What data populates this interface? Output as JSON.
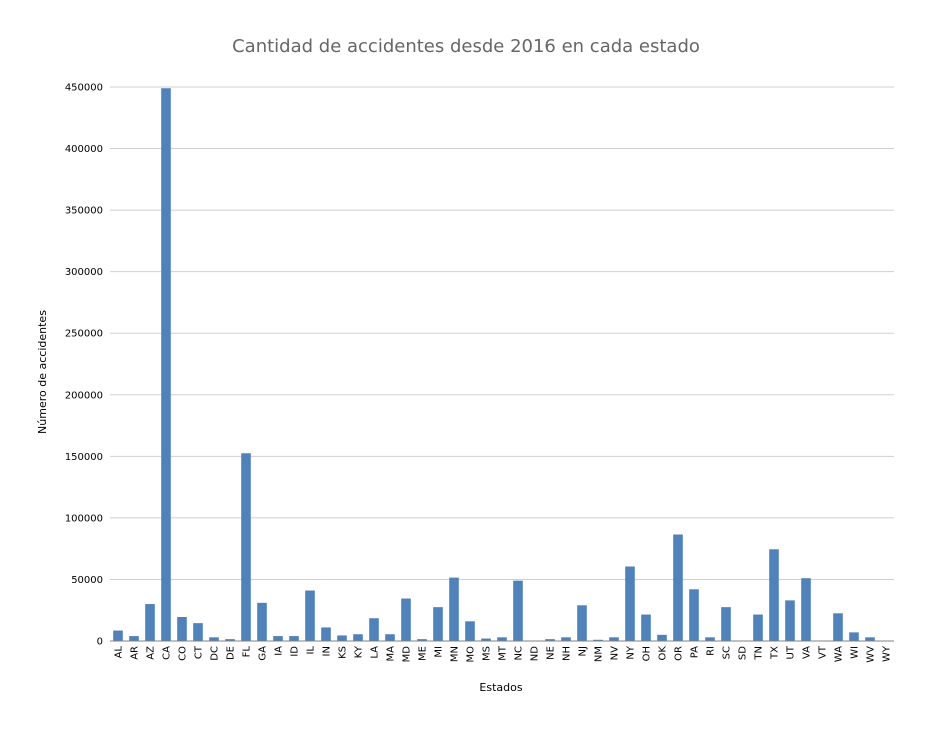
{
  "chart_data": {
    "type": "bar",
    "title": "Cantidad de accidentes desde 2016 en cada estado",
    "xlabel": "Estados",
    "ylabel": "Número de accidentes",
    "ylim": [
      0,
      450000
    ],
    "yticks": [
      0,
      50000,
      100000,
      150000,
      200000,
      250000,
      300000,
      350000,
      400000,
      450000
    ],
    "grid": true,
    "legend": "none",
    "bar_color": "#4f81bd",
    "categories": [
      "AL",
      "AR",
      "AZ",
      "CA",
      "CO",
      "CT",
      "DC",
      "DE",
      "FL",
      "GA",
      "IA",
      "ID",
      "IL",
      "IN",
      "KS",
      "KY",
      "LA",
      "MA",
      "MD",
      "ME",
      "MI",
      "MN",
      "MO",
      "MS",
      "MT",
      "NC",
      "ND",
      "NE",
      "NH",
      "NJ",
      "NM",
      "NV",
      "NY",
      "OH",
      "OK",
      "OR",
      "PA",
      "RI",
      "SC",
      "SD",
      "TN",
      "TX",
      "UT",
      "VA",
      "VT",
      "WA",
      "WI",
      "WV",
      "WY"
    ],
    "values": [
      8500,
      4000,
      30000,
      449000,
      19500,
      14500,
      3000,
      1500,
      152500,
      31000,
      4000,
      4000,
      41000,
      11000,
      4500,
      5500,
      18500,
      5500,
      34500,
      1500,
      27500,
      51500,
      16000,
      2000,
      3000,
      49000,
      0,
      1500,
      3000,
      29000,
      1000,
      3000,
      60500,
      21500,
      5000,
      86500,
      42000,
      3000,
      27500,
      0,
      21500,
      74500,
      33000,
      51000,
      0,
      22500,
      7000,
      3000,
      0
    ]
  }
}
